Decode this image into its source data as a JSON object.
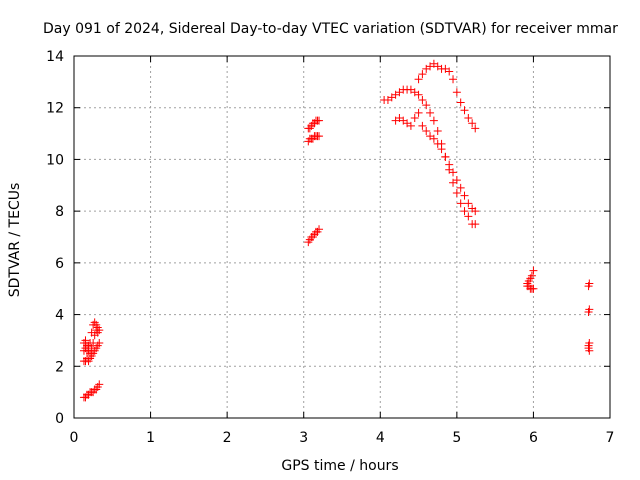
{
  "chart_data": {
    "type": "scatter",
    "title": "Day 091 of 2024, Sidereal Day-to-day VTEC variation (SDTVAR) for receiver mmar",
    "xlabel": "GPS time / hours",
    "ylabel": "SDTVAR / TECUs",
    "xlim": [
      0,
      7
    ],
    "ylim": [
      0,
      14
    ],
    "xticks": [
      0,
      1,
      2,
      3,
      4,
      5,
      6,
      7
    ],
    "yticks": [
      0,
      2,
      4,
      6,
      8,
      10,
      12,
      14
    ],
    "grid": true,
    "marker": "+",
    "marker_color": "#ff0000",
    "series": [
      {
        "name": "SDTVAR",
        "x": [
          0.13,
          0.15,
          0.17,
          0.19,
          0.21,
          0.23,
          0.25,
          0.27,
          0.29,
          0.31,
          0.33,
          0.13,
          0.15,
          0.17,
          0.19,
          0.21,
          0.23,
          0.25,
          0.27,
          0.29,
          0.31,
          0.33,
          0.13,
          0.15,
          0.17,
          0.19,
          0.21,
          0.23,
          0.25,
          0.27,
          0.29,
          0.31,
          0.33,
          0.13,
          0.15,
          0.17,
          0.19,
          0.21,
          0.23,
          0.25,
          0.27,
          0.29,
          0.31,
          3.06,
          3.08,
          3.1,
          3.12,
          3.14,
          3.16,
          3.18,
          3.2,
          3.06,
          3.08,
          3.1,
          3.12,
          3.14,
          3.16,
          3.18,
          3.2,
          3.06,
          3.08,
          3.1,
          3.12,
          3.14,
          3.16,
          3.18,
          3.2,
          4.05,
          4.1,
          4.15,
          4.2,
          4.25,
          4.3,
          4.35,
          4.4,
          4.45,
          4.5,
          4.55,
          4.6,
          4.65,
          4.7,
          4.75,
          4.8,
          4.85,
          4.9,
          4.95,
          5.0,
          5.05,
          5.1,
          5.15,
          5.2,
          5.24,
          4.5,
          4.55,
          4.6,
          4.65,
          4.7,
          4.75,
          4.8,
          4.85,
          4.9,
          4.95,
          5.0,
          5.05,
          5.1,
          5.15,
          5.2,
          5.24,
          4.2,
          4.25,
          4.3,
          4.35,
          4.4,
          4.45,
          4.5,
          4.55,
          4.6,
          4.65,
          4.7,
          4.75,
          4.8,
          4.85,
          4.9,
          4.95,
          5.0,
          5.05,
          5.1,
          5.15,
          5.2,
          5.24,
          5.92,
          5.94,
          5.96,
          5.98,
          6.0,
          5.92,
          5.94,
          5.96,
          5.98,
          6.0,
          6.72,
          6.73,
          6.72,
          6.73,
          6.72,
          6.73,
          6.72,
          6.73
        ],
        "y": [
          2.9,
          3.0,
          2.8,
          2.6,
          2.5,
          2.7,
          2.9,
          3.2,
          3.4,
          3.5,
          3.4,
          2.2,
          2.2,
          2.3,
          2.2,
          2.3,
          2.4,
          2.5,
          2.6,
          2.7,
          2.8,
          2.9,
          0.8,
          0.8,
          0.9,
          0.9,
          1.0,
          1.0,
          1.0,
          1.1,
          1.1,
          1.2,
          1.3,
          2.6,
          2.7,
          2.6,
          2.8,
          2.9,
          3.3,
          3.6,
          3.7,
          3.6,
          3.3,
          6.8,
          6.9,
          7.0,
          7.0,
          7.1,
          7.2,
          7.2,
          7.3,
          10.7,
          10.8,
          10.8,
          10.8,
          10.9,
          10.9,
          10.9,
          10.9,
          11.2,
          11.2,
          11.3,
          11.4,
          11.4,
          11.5,
          11.5,
          11.5,
          12.3,
          12.3,
          12.4,
          12.5,
          12.6,
          12.7,
          12.7,
          12.7,
          12.6,
          12.5,
          12.3,
          12.1,
          11.8,
          11.5,
          11.1,
          10.6,
          10.1,
          9.6,
          9.1,
          8.7,
          8.3,
          8.0,
          7.8,
          7.5,
          7.5,
          13.1,
          13.3,
          13.5,
          13.6,
          13.7,
          13.6,
          13.5,
          13.5,
          13.4,
          13.1,
          12.6,
          12.2,
          11.9,
          11.6,
          11.4,
          11.2,
          11.5,
          11.6,
          11.5,
          11.4,
          11.3,
          11.6,
          11.8,
          11.3,
          11.1,
          10.9,
          10.8,
          10.6,
          10.4,
          10.1,
          9.8,
          9.5,
          9.2,
          8.9,
          8.6,
          8.3,
          8.1,
          8.0,
          5.1,
          5.3,
          5.4,
          5.5,
          5.7,
          5.2,
          5.1,
          5.0,
          5.0,
          5.0,
          5.1,
          5.2,
          4.1,
          4.2,
          2.8,
          2.9,
          2.7,
          2.6
        ]
      }
    ]
  }
}
